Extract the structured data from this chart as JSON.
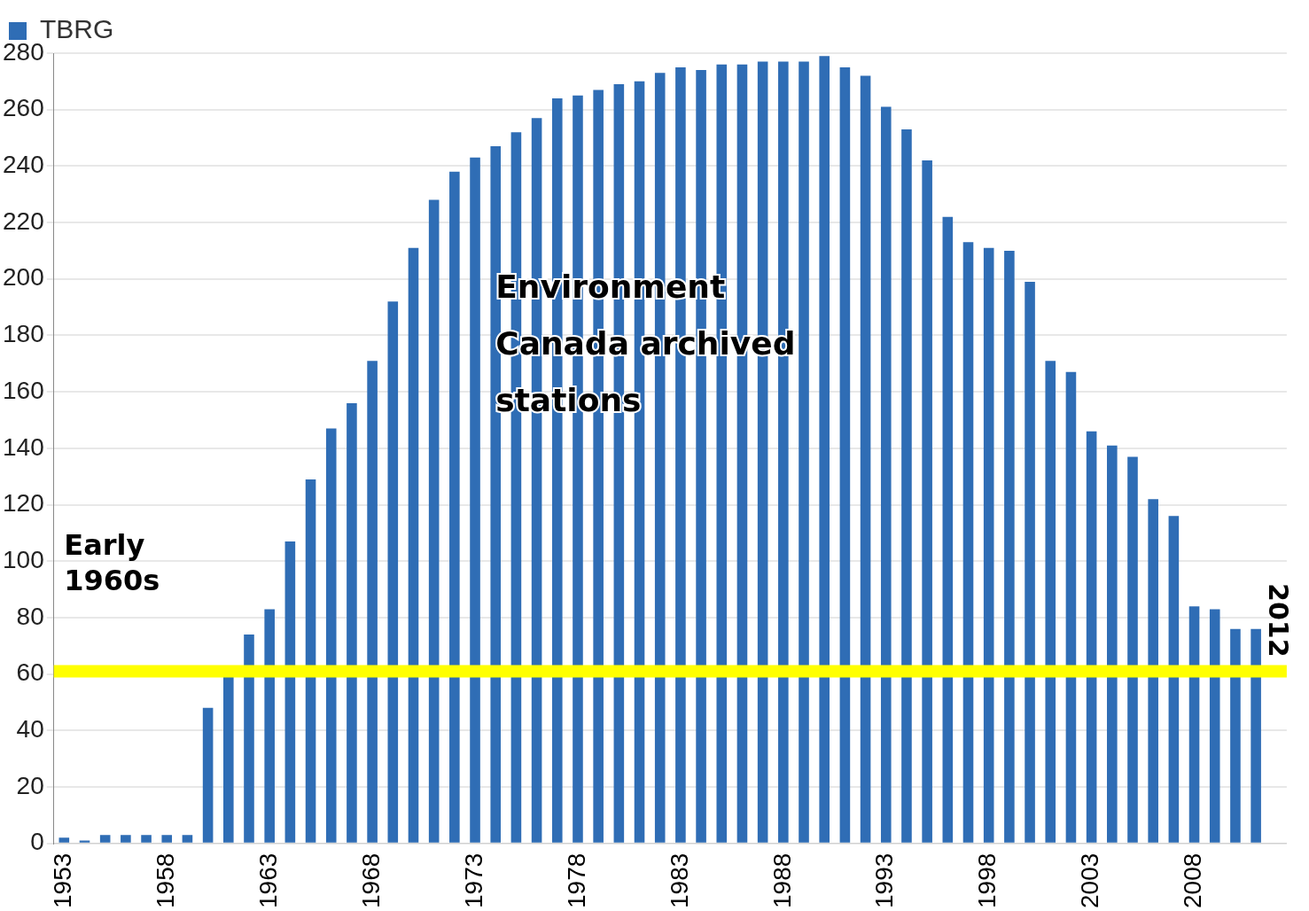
{
  "chart_data": {
    "type": "bar",
    "categories": [
      "1953",
      null,
      null,
      null,
      null,
      "1958",
      null,
      null,
      null,
      null,
      "1963",
      null,
      null,
      null,
      null,
      "1968",
      null,
      null,
      null,
      null,
      "1973",
      null,
      null,
      null,
      null,
      "1978",
      null,
      null,
      null,
      null,
      "1983",
      null,
      null,
      null,
      null,
      "1988",
      null,
      null,
      null,
      null,
      "1993",
      null,
      null,
      null,
      null,
      "1998",
      null,
      null,
      null,
      null,
      "2003",
      null,
      null,
      null,
      null,
      "2008",
      null,
      null,
      null,
      null
    ],
    "series": [
      {
        "name": "TBRG",
        "color": "#2f6db5",
        "values": [
          2,
          1,
          3,
          3,
          3,
          3,
          3,
          48,
          59,
          74,
          83,
          107,
          129,
          147,
          156,
          171,
          192,
          211,
          228,
          238,
          243,
          247,
          252,
          257,
          264,
          265,
          267,
          269,
          270,
          273,
          275,
          274,
          276,
          276,
          277,
          277,
          277,
          279,
          275,
          272,
          261,
          253,
          242,
          222,
          213,
          211,
          210,
          199,
          171,
          167,
          146,
          141,
          137,
          122,
          116,
          84,
          83,
          76,
          76,
          null
        ]
      }
    ],
    "ylim": [
      0,
      280
    ],
    "yticks": [
      0,
      20,
      40,
      60,
      80,
      100,
      120,
      140,
      160,
      180,
      200,
      220,
      240,
      260,
      280
    ],
    "grid": "y",
    "legend": "top left",
    "ref_lines": [
      {
        "axis": "y",
        "value": 61,
        "color": "#ffff00"
      }
    ],
    "annotations": [
      "Environment Canada archived stations",
      "Early 1960s",
      "2012"
    ]
  }
}
